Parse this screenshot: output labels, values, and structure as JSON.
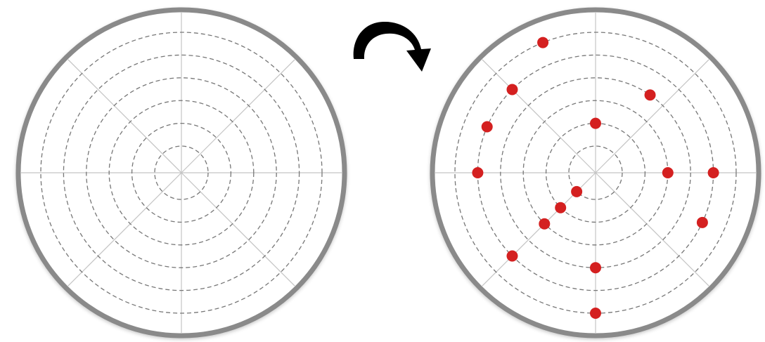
{
  "diagram": {
    "rings": 6,
    "spokes": 8,
    "colors": {
      "rim": "#8a8a8a",
      "ring": "#777777",
      "spoke": "#c4c4c4",
      "arrow": "#000000",
      "dot": "#d42020"
    },
    "icons": {
      "transition": "curved-arrow-clockwise-icon"
    },
    "left_plate": {
      "state": "empty",
      "points": []
    },
    "right_plate": {
      "state": "populated",
      "points": [
        {
          "angle_deg": 112,
          "ring": 6
        },
        {
          "angle_deg": 135,
          "ring": 5
        },
        {
          "angle_deg": 157,
          "ring": 5
        },
        {
          "angle_deg": 180,
          "ring": 5
        },
        {
          "angle_deg": 90,
          "ring": 2
        },
        {
          "angle_deg": 55,
          "ring": 4
        },
        {
          "angle_deg": 0,
          "ring": 3
        },
        {
          "angle_deg": 0,
          "ring": 5
        },
        {
          "angle_deg": -25,
          "ring": 5
        },
        {
          "angle_deg": -135,
          "ring": 1
        },
        {
          "angle_deg": -135,
          "ring": 2
        },
        {
          "angle_deg": -135,
          "ring": 3
        },
        {
          "angle_deg": -135,
          "ring": 5
        },
        {
          "angle_deg": -90,
          "ring": 4
        },
        {
          "angle_deg": -90,
          "ring": 6
        }
      ]
    }
  }
}
